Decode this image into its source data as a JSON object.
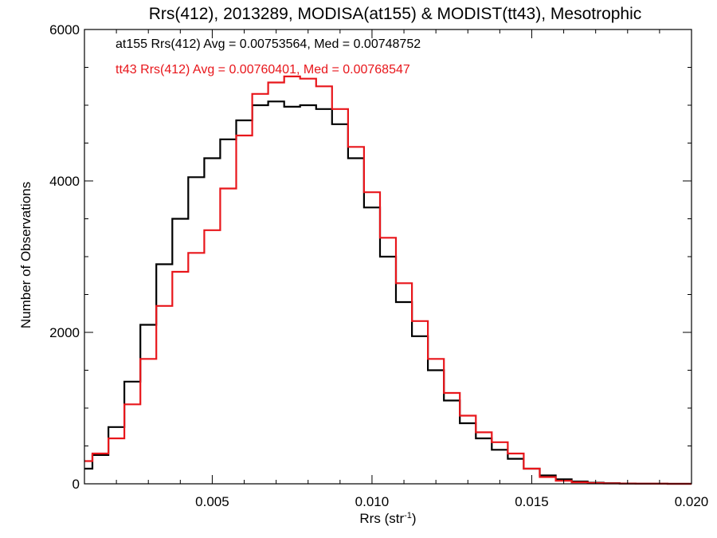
{
  "chart_data": {
    "type": "line",
    "title": "Rrs(412), 2013289, MODISA(at155) & MODIST(tt43), Mesotrophic",
    "xlabel": "Rrs (str",
    "xlabel_sup": "-1",
    "xlabel_close": ")",
    "ylabel": "Number of Observations",
    "xlim": [
      0.001,
      0.02
    ],
    "ylim": [
      0,
      6000
    ],
    "xticks": [
      0.005,
      0.01,
      0.015,
      0.02
    ],
    "xtick_labels": [
      "0.005",
      "0.010",
      "0.015",
      "0.020"
    ],
    "yticks": [
      0,
      2000,
      4000,
      6000
    ],
    "ytick_labels": [
      "0",
      "2000",
      "4000",
      "6000"
    ],
    "grid": false,
    "legend": "top-left",
    "series": [
      {
        "name": "at155",
        "label": "at155 Rrs(412) Avg = 0.00753564, Med = 0.00748752",
        "color": "#000000",
        "x": [
          0.001,
          0.0015,
          0.002,
          0.0025,
          0.003,
          0.0035,
          0.004,
          0.0045,
          0.005,
          0.0055,
          0.006,
          0.0065,
          0.007,
          0.0075,
          0.008,
          0.0085,
          0.009,
          0.0095,
          0.01,
          0.0105,
          0.011,
          0.0115,
          0.012,
          0.0125,
          0.013,
          0.0135,
          0.014,
          0.0145,
          0.015,
          0.0155,
          0.016,
          0.0165,
          0.017,
          0.0175,
          0.018,
          0.0185,
          0.019,
          0.0195,
          0.02
        ],
        "y": [
          200,
          380,
          750,
          1350,
          2100,
          2900,
          3500,
          4050,
          4300,
          4550,
          4800,
          5000,
          5050,
          4980,
          5000,
          4950,
          4750,
          4300,
          3650,
          3000,
          2400,
          1950,
          1500,
          1100,
          800,
          600,
          450,
          330,
          200,
          110,
          60,
          30,
          15,
          8,
          4,
          2,
          1,
          0,
          0
        ]
      },
      {
        "name": "tt43",
        "label": "tt43 Rrs(412) Avg = 0.00760401, Med = 0.00768547",
        "color": "#e8161b",
        "x": [
          0.001,
          0.0015,
          0.002,
          0.0025,
          0.003,
          0.0035,
          0.004,
          0.0045,
          0.005,
          0.0055,
          0.006,
          0.0065,
          0.007,
          0.0075,
          0.008,
          0.0085,
          0.009,
          0.0095,
          0.01,
          0.0105,
          0.011,
          0.0115,
          0.012,
          0.0125,
          0.013,
          0.0135,
          0.014,
          0.0145,
          0.015,
          0.0155,
          0.016,
          0.0165,
          0.017,
          0.0175,
          0.018,
          0.0185,
          0.019,
          0.0195,
          0.02
        ],
        "y": [
          300,
          400,
          600,
          1050,
          1650,
          2350,
          2800,
          3050,
          3350,
          3900,
          4600,
          5150,
          5300,
          5380,
          5350,
          5250,
          4950,
          4450,
          3850,
          3250,
          2650,
          2150,
          1650,
          1200,
          900,
          680,
          550,
          400,
          200,
          90,
          40,
          20,
          10,
          5,
          3,
          2,
          1,
          0,
          0
        ]
      }
    ]
  }
}
